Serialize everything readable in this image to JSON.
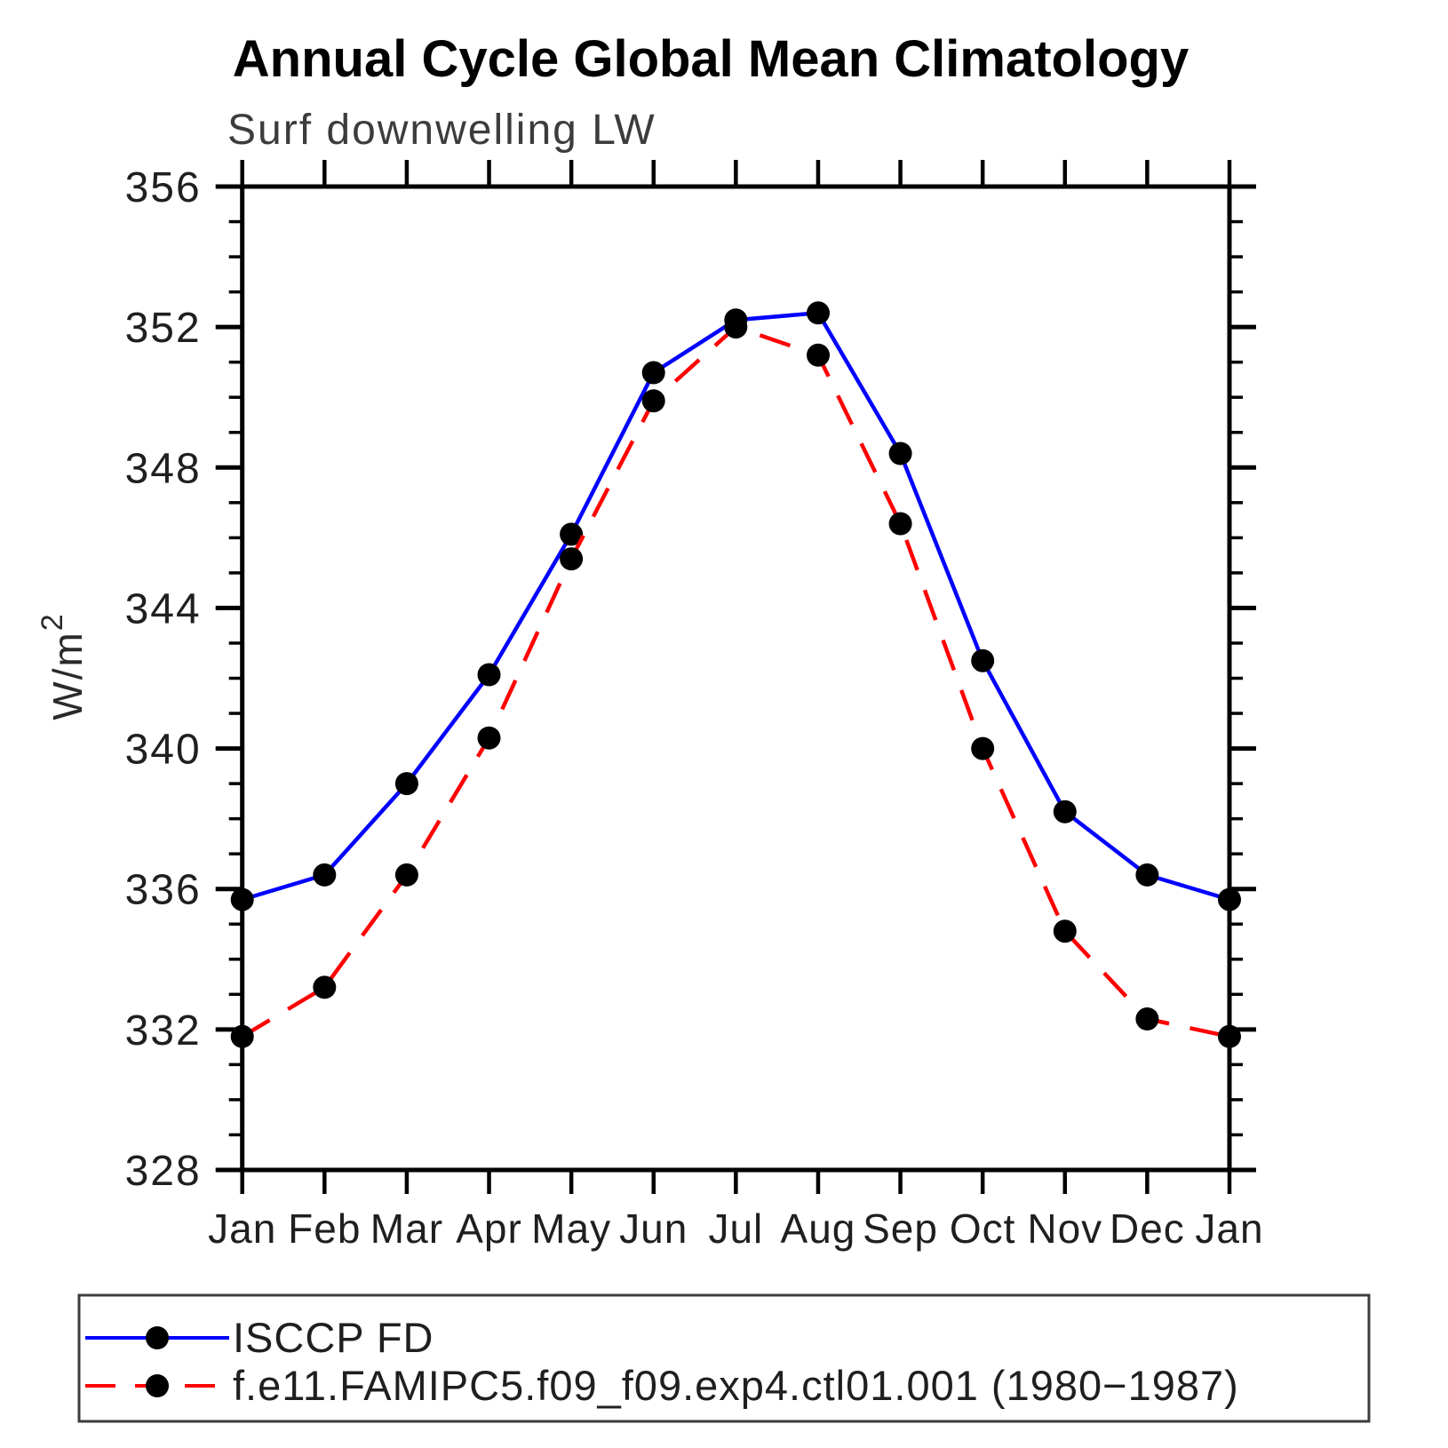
{
  "title": "Annual Cycle Global Mean Climatology",
  "subtitle": "Surf downwelling LW",
  "ylabel_main": "W/m",
  "ylabel_sup": "2",
  "chart_data": {
    "type": "line",
    "categories": [
      "Jan",
      "Feb",
      "Mar",
      "Apr",
      "May",
      "Jun",
      "Jul",
      "Aug",
      "Sep",
      "Oct",
      "Nov",
      "Dec",
      "Jan"
    ],
    "series": [
      {
        "name": "ISCCP FD",
        "color": "#0000ff",
        "line_style": "solid",
        "marker": "filled-circle",
        "marker_color": "#000000",
        "values": [
          335.7,
          336.4,
          339.0,
          342.1,
          346.1,
          350.7,
          352.2,
          352.4,
          348.4,
          342.5,
          338.2,
          336.4,
          335.7
        ]
      },
      {
        "name": "f.e11.FAMIPC5.f09_f09.exp4.ctl01.001 (1980−1987)",
        "color": "#ff0000",
        "line_style": "dashed",
        "marker": "filled-circle",
        "marker_color": "#000000",
        "values": [
          331.8,
          333.2,
          336.4,
          340.3,
          345.4,
          349.9,
          352.0,
          351.2,
          346.4,
          340.0,
          334.8,
          332.3,
          331.8
        ]
      }
    ],
    "ylim": [
      328,
      356
    ],
    "y_ticks": [
      328,
      332,
      336,
      340,
      344,
      348,
      352,
      356
    ],
    "y_minor_step": 1,
    "grid": "off",
    "legend_position": "bottom",
    "frame": "box",
    "axis_color": "#000000"
  }
}
